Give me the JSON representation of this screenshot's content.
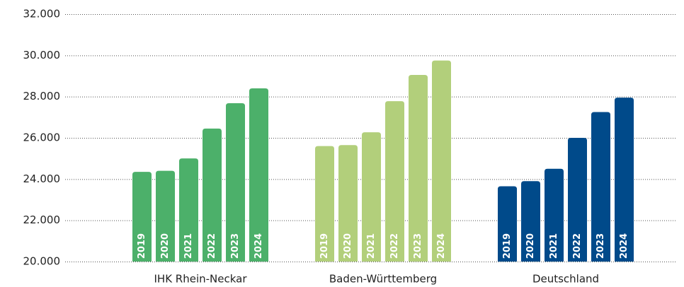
{
  "chart_data": {
    "type": "bar",
    "categories": [
      "IHK Rhein-Neckar",
      "Baden-Württemberg",
      "Deutschland"
    ],
    "category_colors": [
      "#4cb06a",
      "#b2cf7b",
      "#004a8a"
    ],
    "series": [
      {
        "name": "2019",
        "values": [
          24350,
          25600,
          23650
        ]
      },
      {
        "name": "2020",
        "values": [
          24400,
          25650,
          23900
        ]
      },
      {
        "name": "2021",
        "values": [
          25000,
          26270,
          24500
        ]
      },
      {
        "name": "2022",
        "values": [
          26450,
          27780,
          26000
        ]
      },
      {
        "name": "2023",
        "values": [
          27680,
          29050,
          27250
        ]
      },
      {
        "name": "2024",
        "values": [
          28400,
          29750,
          27950
        ]
      }
    ],
    "ylim": [
      20000,
      32000
    ],
    "yticks": [
      {
        "value": 20000,
        "label": "20.000"
      },
      {
        "value": 22000,
        "label": "22.000"
      },
      {
        "value": 24000,
        "label": "24.000"
      },
      {
        "value": 26000,
        "label": "26.000"
      },
      {
        "value": 28000,
        "label": "28.000"
      },
      {
        "value": 30000,
        "label": "30.000"
      },
      {
        "value": 32000,
        "label": "32.000"
      }
    ],
    "grid": true
  }
}
